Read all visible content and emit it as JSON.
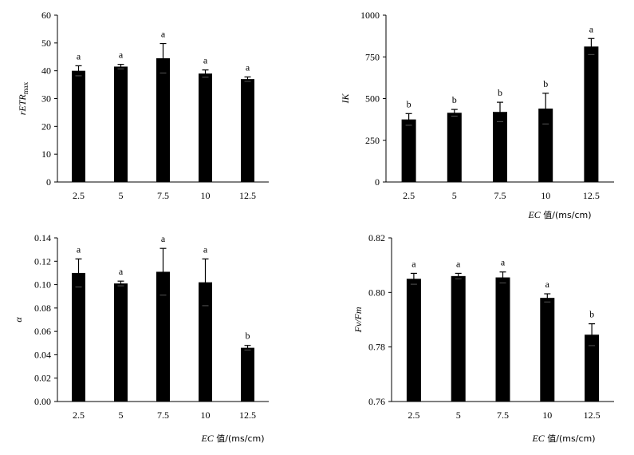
{
  "chart_data": [
    {
      "type": "bar",
      "panel": "top-left",
      "categories": [
        "2.5",
        "5",
        "7.5",
        "10",
        "12.5"
      ],
      "values": [
        40.0,
        41.5,
        44.5,
        39.0,
        37.0
      ],
      "errors": [
        1.8,
        0.8,
        5.3,
        1.3,
        0.8
      ],
      "letters": [
        "a",
        "a",
        "a",
        "a",
        "a"
      ],
      "ylabel": "rETRmax",
      "ylabel_main": "rETR",
      "ylabel_sub": "max",
      "xlabel": "",
      "ylim": [
        0,
        60
      ],
      "yticks": [
        "0",
        "10",
        "20",
        "30",
        "40",
        "50",
        "60"
      ],
      "grid": false
    },
    {
      "type": "bar",
      "panel": "top-right",
      "categories": [
        "2.5",
        "5",
        "7.5",
        "10",
        "12.5"
      ],
      "values": [
        375,
        415,
        420,
        440,
        812
      ],
      "errors": [
        35,
        20,
        58,
        92,
        48
      ],
      "letters": [
        "b",
        "b",
        "b",
        "b",
        "a"
      ],
      "ylabel": "IK",
      "xlabel": "EC 值/(ms/cm)",
      "xlabel_italic": "EC",
      "xlabel_rest": " 值/(ms/cm)",
      "ylim": [
        0,
        1000
      ],
      "yticks": [
        "0",
        "250",
        "500",
        "750",
        "1000"
      ],
      "grid": false
    },
    {
      "type": "bar",
      "panel": "bottom-left",
      "categories": [
        "2.5",
        "5",
        "7.5",
        "10",
        "12.5"
      ],
      "values": [
        0.11,
        0.101,
        0.111,
        0.102,
        0.046
      ],
      "errors": [
        0.012,
        0.002,
        0.02,
        0.02,
        0.002
      ],
      "letters": [
        "a",
        "a",
        "a",
        "a",
        "b"
      ],
      "ylabel": "α",
      "xlabel": "EC 值/(ms/cm)",
      "xlabel_italic": "EC",
      "xlabel_rest": " 值/(ms/cm)",
      "ylim": [
        0,
        0.14
      ],
      "yticks": [
        "0.00",
        "0.02",
        "0.04",
        "0.06",
        "0.08",
        "0.10",
        "0.12",
        "0.14"
      ],
      "grid": false
    },
    {
      "type": "bar",
      "panel": "bottom-right",
      "categories": [
        "2.5",
        "5",
        "7.5",
        "10",
        "12.5"
      ],
      "values": [
        0.805,
        0.806,
        0.8055,
        0.798,
        0.7845
      ],
      "errors": [
        0.002,
        0.001,
        0.002,
        0.0015,
        0.004
      ],
      "letters": [
        "a",
        "a",
        "a",
        "a",
        "b"
      ],
      "ylabel": "Fv/Fm",
      "xlabel": "EC 值/(ms/cm)",
      "xlabel_italic": "EC",
      "xlabel_rest": " 值/(ms/cm)",
      "ylim": [
        0.76,
        0.82
      ],
      "yticks": [
        "0.76",
        "0.78",
        "0.80",
        "0.82"
      ],
      "grid": false
    }
  ]
}
